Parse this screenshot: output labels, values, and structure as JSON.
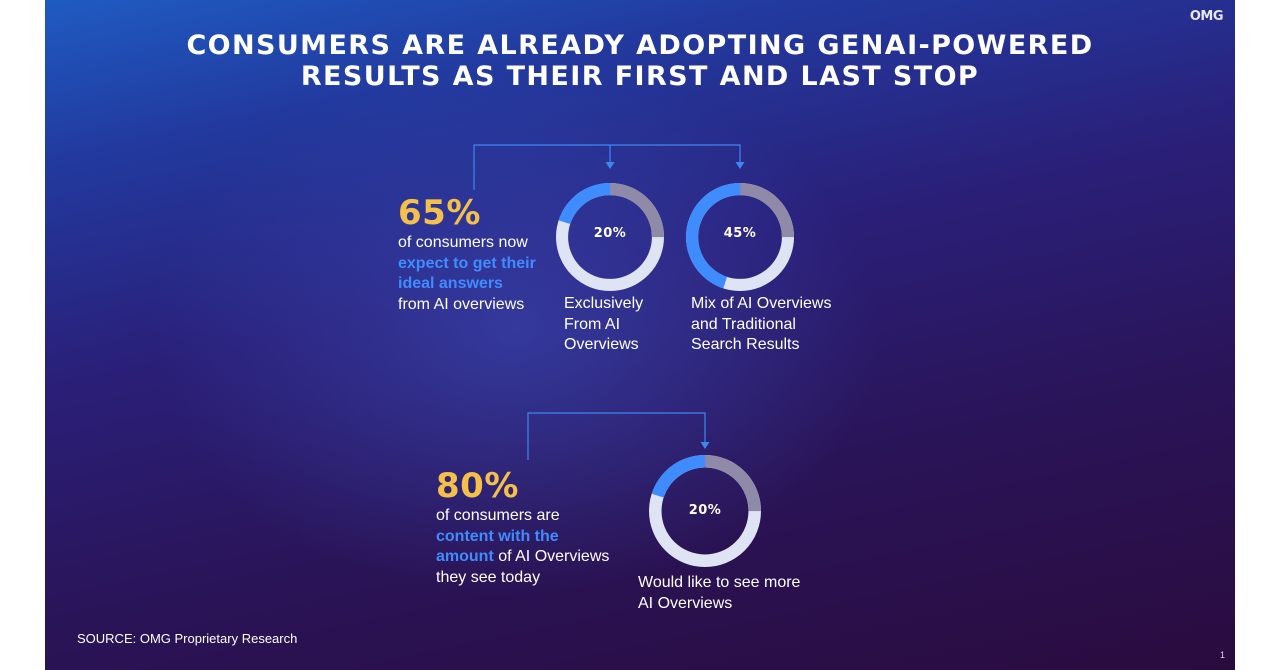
{
  "logo": "OMG",
  "title_line1": "Consumers are already adopting GenAI-powered",
  "title_line2": "results as their first and last stop",
  "stat1": {
    "pct": "65%",
    "line1": "of consumers now",
    "hl1": "expect to get their",
    "hl2": "ideal answers",
    "line2": "from AI overviews"
  },
  "stat2": {
    "pct": "80%",
    "line1": "of consumers are",
    "hl1": "content with the",
    "hl2": "amount",
    "tail": " of AI Overviews",
    "line2": "they see today"
  },
  "chart_data": [
    {
      "type": "pie",
      "value": 20,
      "label": "20%",
      "caption": [
        "Exclusively",
        "From AI",
        "Overviews"
      ]
    },
    {
      "type": "pie",
      "value": 45,
      "label": "45%",
      "caption": [
        "Mix of AI Overviews",
        "and Traditional",
        "Search Results"
      ]
    },
    {
      "type": "pie",
      "value": 20,
      "label": "20%",
      "caption": [
        "Would like to see more",
        "AI Overviews"
      ]
    }
  ],
  "colors": {
    "accent_blue": "#3f8cff",
    "highlight_yellow": "#f5c04a",
    "ring_light": "#dfe4f5",
    "ring_grey": "#8e8aa8"
  },
  "source": "SOURCE: OMG Proprietary Research",
  "page_number": "1"
}
